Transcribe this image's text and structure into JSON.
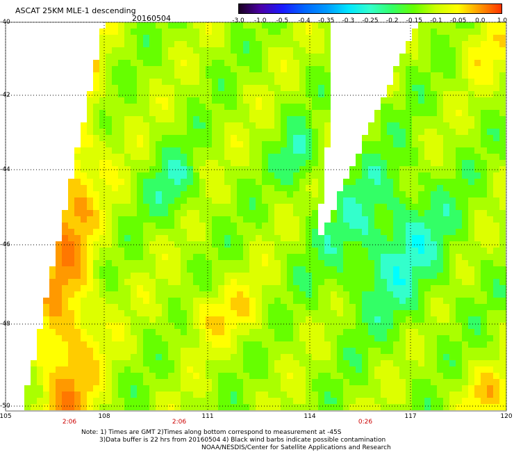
{
  "header": {
    "title": "ASCAT 25KM MLE-1 descending",
    "date": "20160504"
  },
  "colorbar": {
    "labels": [
      "-3.0",
      "-1.0",
      "-0.5",
      "-0.4",
      "-0.35",
      "-0.3",
      "-0.25",
      "-0.2",
      "-0.15",
      "-0.1",
      "-0.05",
      "0.0",
      "1.0"
    ],
    "colors": [
      "#1a0020",
      "#4b00a8",
      "#1a1aff",
      "#0066ff",
      "#0099ff",
      "#00e5ff",
      "#33ffcc",
      "#33ff66",
      "#66ff00",
      "#ccff00",
      "#ffff00",
      "#ff9900",
      "#ff3300"
    ]
  },
  "axes": {
    "lat_labels": [
      "-40",
      "-42",
      "-44",
      "-46",
      "-48",
      "-50"
    ],
    "lon_labels": [
      "105",
      "108",
      "111",
      "114",
      "117",
      "120"
    ],
    "time_labels": [
      "2:06",
      "2:06",
      "0:26"
    ]
  },
  "notes": {
    "line1": "Note: 1) Times are GMT 2)Times along bottom correspond to measurement at -45S",
    "line2": "3)Data buffer is 22 hrs from 20160504 4) Black wind barbs indicate possible contamination",
    "line3": "NOAA/NESDIS/Center for Satellite Applications and Research"
  },
  "map": {
    "fill_palette": [
      "#00ffff",
      "#33ffcc",
      "#33ff66",
      "#66ff00",
      "#aaff00",
      "#ddff00",
      "#ffff00",
      "#ffcc00",
      "#ff9900",
      "#ff7700"
    ]
  }
}
